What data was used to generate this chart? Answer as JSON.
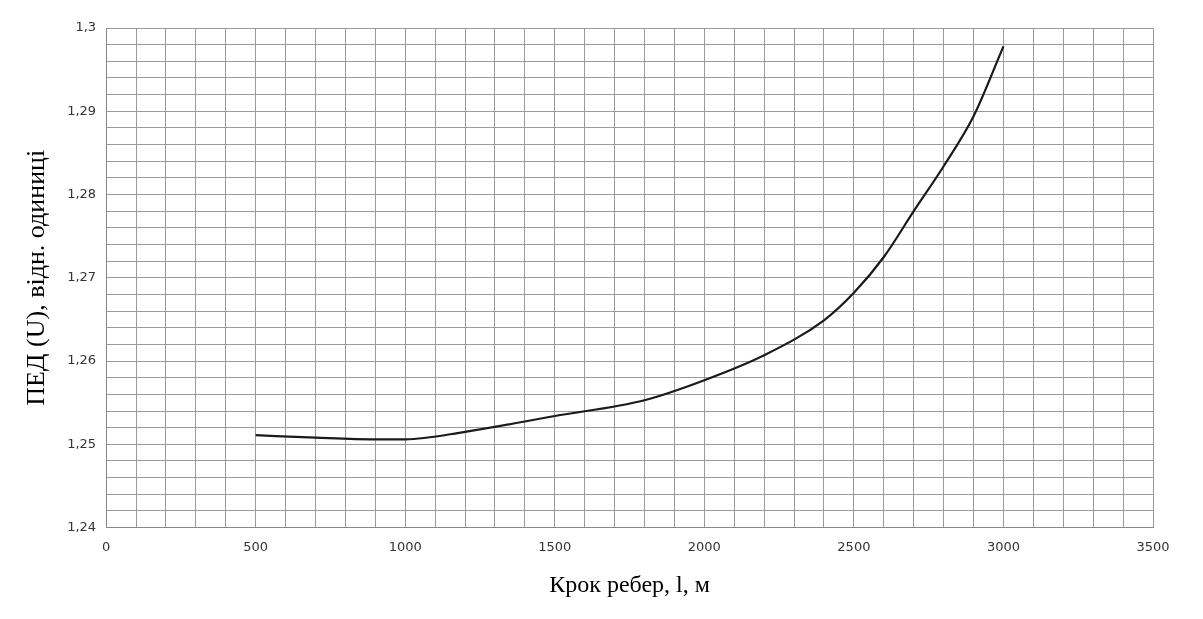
{
  "chart_data": {
    "type": "line",
    "xlabel": "Крок ребер, l, м",
    "ylabel": "ПЕД (U), відн. одиниці",
    "x": [
      500,
      700,
      900,
      1000,
      1200,
      1500,
      1800,
      2000,
      2200,
      2400,
      2500,
      2600,
      2700,
      2800,
      2900,
      3000
    ],
    "series": [
      {
        "color": "#1a1a1a",
        "values": [
          1.2511,
          1.2508,
          1.2506,
          1.2506,
          1.2515,
          1.2534,
          1.2553,
          1.2577,
          1.2607,
          1.2649,
          1.2682,
          1.2725,
          1.278,
          1.2834,
          1.2894,
          1.2978
        ]
      }
    ],
    "xlim": [
      0,
      3500
    ],
    "xticks": [
      0,
      {
        "value": 100,
        "label": null
      },
      {
        "value": 200,
        "label": null
      },
      {
        "value": 300,
        "label": null
      },
      {
        "value": 400,
        "label": null
      },
      500,
      {
        "value": 600,
        "label": null
      },
      {
        "value": 700,
        "label": null
      },
      {
        "value": 800,
        "label": null
      },
      {
        "value": 900,
        "label": null
      },
      1000,
      {
        "value": 1100,
        "label": null
      },
      {
        "value": 1200,
        "label": null
      },
      {
        "value": 1300,
        "label": null
      },
      {
        "value": 1400,
        "label": null
      },
      1500,
      {
        "value": 1600,
        "label": null
      },
      {
        "value": 1700,
        "label": null
      },
      {
        "value": 1800,
        "label": null
      },
      {
        "value": 1900,
        "label": null
      },
      2000,
      {
        "value": 2100,
        "label": null
      },
      {
        "value": 2200,
        "label": null
      },
      {
        "value": 2300,
        "label": null
      },
      {
        "value": 2400,
        "label": null
      },
      2500,
      {
        "value": 2600,
        "label": null
      },
      {
        "value": 2700,
        "label": null
      },
      {
        "value": 2800,
        "label": null
      },
      {
        "value": 2900,
        "label": null
      },
      3000,
      {
        "value": 3100,
        "label": null
      },
      {
        "value": 3200,
        "label": null
      },
      {
        "value": 3300,
        "label": null
      },
      {
        "value": 3400,
        "label": null
      },
      3500
    ],
    "ylim": [
      1.24,
      1.3
    ],
    "yticks": [
      {
        "value": 1.24,
        "label": "1,24"
      },
      {
        "value": 1.242,
        "label": null
      },
      {
        "value": 1.244,
        "label": null
      },
      {
        "value": 1.246,
        "label": null
      },
      {
        "value": 1.248,
        "label": null
      },
      {
        "value": 1.25,
        "label": "1,25"
      },
      {
        "value": 1.252,
        "label": null
      },
      {
        "value": 1.254,
        "label": null
      },
      {
        "value": 1.256,
        "label": null
      },
      {
        "value": 1.258,
        "label": null
      },
      {
        "value": 1.26,
        "label": "1,26"
      },
      {
        "value": 1.262,
        "label": null
      },
      {
        "value": 1.264,
        "label": null
      },
      {
        "value": 1.266,
        "label": null
      },
      {
        "value": 1.268,
        "label": null
      },
      {
        "value": 1.27,
        "label": "1,27"
      },
      {
        "value": 1.272,
        "label": null
      },
      {
        "value": 1.274,
        "label": null
      },
      {
        "value": 1.276,
        "label": null
      },
      {
        "value": 1.278,
        "label": null
      },
      {
        "value": 1.28,
        "label": "1,28"
      },
      {
        "value": 1.282,
        "label": null
      },
      {
        "value": 1.284,
        "label": null
      },
      {
        "value": 1.286,
        "label": null
      },
      {
        "value": 1.288,
        "label": null
      },
      {
        "value": 1.29,
        "label": "1,29"
      },
      {
        "value": 1.292,
        "label": null
      },
      {
        "value": 1.294,
        "label": null
      },
      {
        "value": 1.296,
        "label": null
      },
      {
        "value": 1.298,
        "label": null
      },
      {
        "value": 1.3,
        "label": "1,3"
      }
    ],
    "grid": true,
    "marker": "none",
    "line_style": "solid",
    "legend": false
  }
}
